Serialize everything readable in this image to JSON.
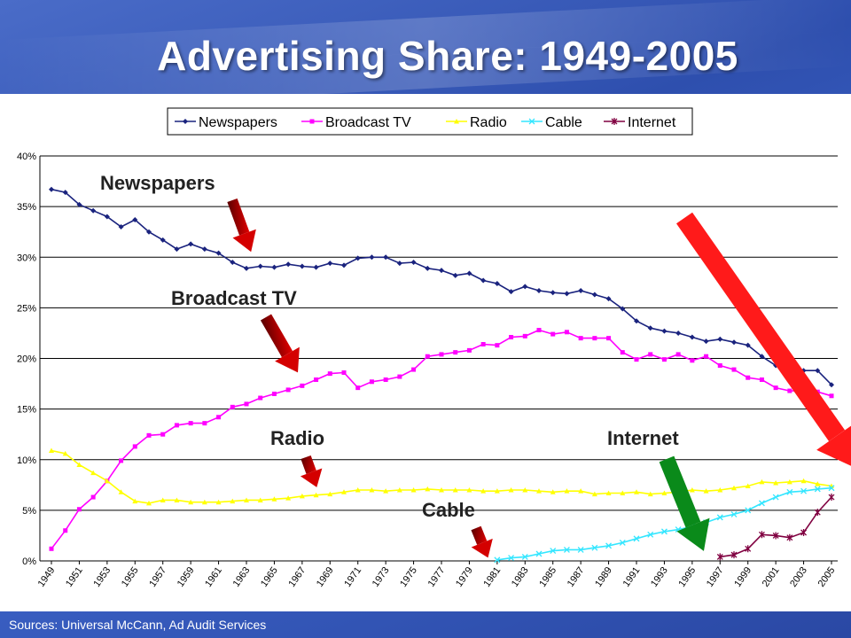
{
  "title": "Advertising Share: 1949-2005",
  "sources": "Sources:  Universal McCann, Ad Audit Services",
  "annotations": {
    "newspapers": "Newspapers",
    "broadcast_tv": "Broadcast TV",
    "radio": "Radio",
    "cable": "Cable",
    "internet": "Internet"
  },
  "chart_data": {
    "type": "line",
    "title": "",
    "xlabel": "",
    "ylabel": "",
    "ylim": [
      0,
      40
    ],
    "yticks": [
      "0%",
      "5%",
      "10%",
      "15%",
      "20%",
      "25%",
      "30%",
      "35%",
      "40%"
    ],
    "x_tick_labels": [
      "1949",
      "1951",
      "1953",
      "1955",
      "1957",
      "1959",
      "1961",
      "1963",
      "1965",
      "1967",
      "1969",
      "1971",
      "1973",
      "1975",
      "1977",
      "1979",
      "1981",
      "1983",
      "1985",
      "1987",
      "1989",
      "1991",
      "1993",
      "1995",
      "1997",
      "1999",
      "2001",
      "2003",
      "2005"
    ],
    "grid": true,
    "legend": "top",
    "x": [
      1949,
      1950,
      1951,
      1952,
      1953,
      1954,
      1955,
      1956,
      1957,
      1958,
      1959,
      1960,
      1961,
      1962,
      1963,
      1964,
      1965,
      1966,
      1967,
      1968,
      1969,
      1970,
      1971,
      1972,
      1973,
      1974,
      1975,
      1976,
      1977,
      1978,
      1979,
      1980,
      1981,
      1982,
      1983,
      1984,
      1985,
      1986,
      1987,
      1988,
      1989,
      1990,
      1991,
      1992,
      1993,
      1994,
      1995,
      1996,
      1997,
      1998,
      1999,
      2000,
      2001,
      2002,
      2003,
      2004,
      2005
    ],
    "series": [
      {
        "name": "Newspapers",
        "color": "#1a237e",
        "marker": "diamond",
        "values": [
          36.7,
          36.4,
          35.2,
          34.6,
          34.0,
          33.0,
          33.7,
          32.5,
          31.7,
          30.8,
          31.3,
          30.8,
          30.4,
          29.5,
          28.9,
          29.1,
          29.0,
          29.3,
          29.1,
          29.0,
          29.4,
          29.2,
          29.9,
          30.0,
          30.0,
          29.4,
          29.5,
          28.9,
          28.7,
          28.2,
          28.4,
          27.7,
          27.4,
          26.6,
          27.1,
          26.7,
          26.5,
          26.4,
          26.7,
          26.3,
          25.9,
          24.9,
          23.7,
          23.0,
          22.7,
          22.5,
          22.1,
          21.7,
          21.9,
          21.6,
          21.3,
          20.2,
          19.3,
          19.0,
          18.8,
          18.8,
          17.4
        ]
      },
      {
        "name": "Broadcast TV",
        "color": "#ff00ff",
        "marker": "square",
        "values": [
          1.2,
          3.0,
          5.1,
          6.3,
          7.9,
          9.9,
          11.3,
          12.4,
          12.5,
          13.4,
          13.6,
          13.6,
          14.2,
          15.2,
          15.5,
          16.1,
          16.5,
          16.9,
          17.3,
          17.9,
          18.5,
          18.6,
          17.1,
          17.7,
          17.9,
          18.2,
          18.9,
          20.2,
          20.4,
          20.6,
          20.8,
          21.4,
          21.3,
          22.1,
          22.2,
          22.8,
          22.4,
          22.6,
          22.0,
          22.0,
          22.0,
          20.6,
          19.9,
          20.4,
          19.9,
          20.4,
          19.8,
          20.2,
          19.3,
          18.9,
          18.1,
          17.9,
          17.1,
          16.8,
          16.8,
          16.7,
          16.3
        ]
      },
      {
        "name": "Radio",
        "color": "#ffff00",
        "marker": "triangle",
        "values": [
          10.9,
          10.6,
          9.5,
          8.7,
          7.9,
          6.8,
          5.9,
          5.7,
          6.0,
          6.0,
          5.8,
          5.8,
          5.8,
          5.9,
          6.0,
          6.0,
          6.1,
          6.2,
          6.4,
          6.5,
          6.6,
          6.8,
          7.0,
          7.0,
          6.9,
          7.0,
          7.0,
          7.1,
          7.0,
          7.0,
          7.0,
          6.9,
          6.9,
          7.0,
          7.0,
          6.9,
          6.8,
          6.9,
          6.9,
          6.6,
          6.7,
          6.7,
          6.8,
          6.6,
          6.7,
          6.8,
          7.0,
          6.9,
          7.0,
          7.2,
          7.4,
          7.8,
          7.7,
          7.8,
          7.9,
          7.6,
          7.4
        ]
      },
      {
        "name": "Cable",
        "color": "#33e6ff",
        "marker": "x",
        "values": [
          null,
          null,
          null,
          null,
          null,
          null,
          null,
          null,
          null,
          null,
          null,
          null,
          null,
          null,
          null,
          null,
          null,
          null,
          null,
          null,
          null,
          null,
          null,
          null,
          null,
          null,
          null,
          null,
          null,
          null,
          null,
          null,
          0.1,
          0.3,
          0.4,
          0.7,
          1.0,
          1.1,
          1.1,
          1.3,
          1.5,
          1.8,
          2.2,
          2.6,
          2.9,
          3.1,
          3.4,
          3.8,
          4.3,
          4.6,
          5.0,
          5.7,
          6.3,
          6.8,
          6.9,
          7.1,
          7.2
        ]
      },
      {
        "name": "Internet",
        "color": "#800040",
        "marker": "star",
        "values": [
          null,
          null,
          null,
          null,
          null,
          null,
          null,
          null,
          null,
          null,
          null,
          null,
          null,
          null,
          null,
          null,
          null,
          null,
          null,
          null,
          null,
          null,
          null,
          null,
          null,
          null,
          null,
          null,
          null,
          null,
          null,
          null,
          null,
          null,
          null,
          null,
          null,
          null,
          null,
          null,
          null,
          null,
          null,
          null,
          null,
          null,
          null,
          null,
          0.4,
          0.6,
          1.2,
          2.6,
          2.5,
          2.3,
          2.8,
          4.8,
          6.3
        ]
      }
    ]
  }
}
